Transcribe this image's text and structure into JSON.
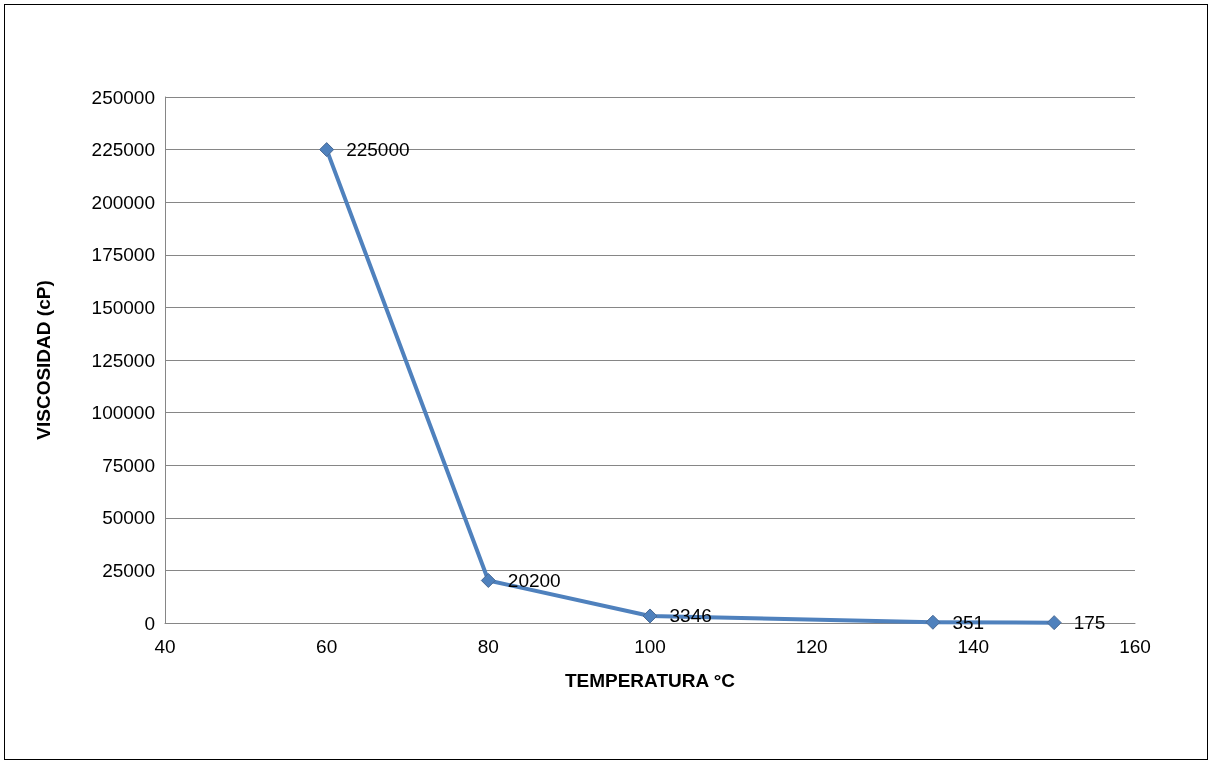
{
  "chart_data": {
    "type": "line",
    "xlabel": "TEMPERATURA °C",
    "ylabel": "VISCOSIDAD (cP)",
    "series": [
      {
        "color": "#4f81bd",
        "x": [
          60,
          80,
          100,
          135,
          150
        ],
        "values": [
          225000,
          20200,
          3346,
          351,
          175
        ]
      }
    ],
    "xlim": [
      40,
      160
    ],
    "xticks": [
      40,
      60,
      80,
      100,
      120,
      140,
      160
    ],
    "ylim": [
      0,
      250000
    ],
    "yticks": [
      0,
      25000,
      50000,
      75000,
      100000,
      125000,
      150000,
      175000,
      200000,
      225000,
      250000
    ],
    "grid": "y",
    "marker": "diamond",
    "line_style": "solid",
    "data_labels": true
  }
}
